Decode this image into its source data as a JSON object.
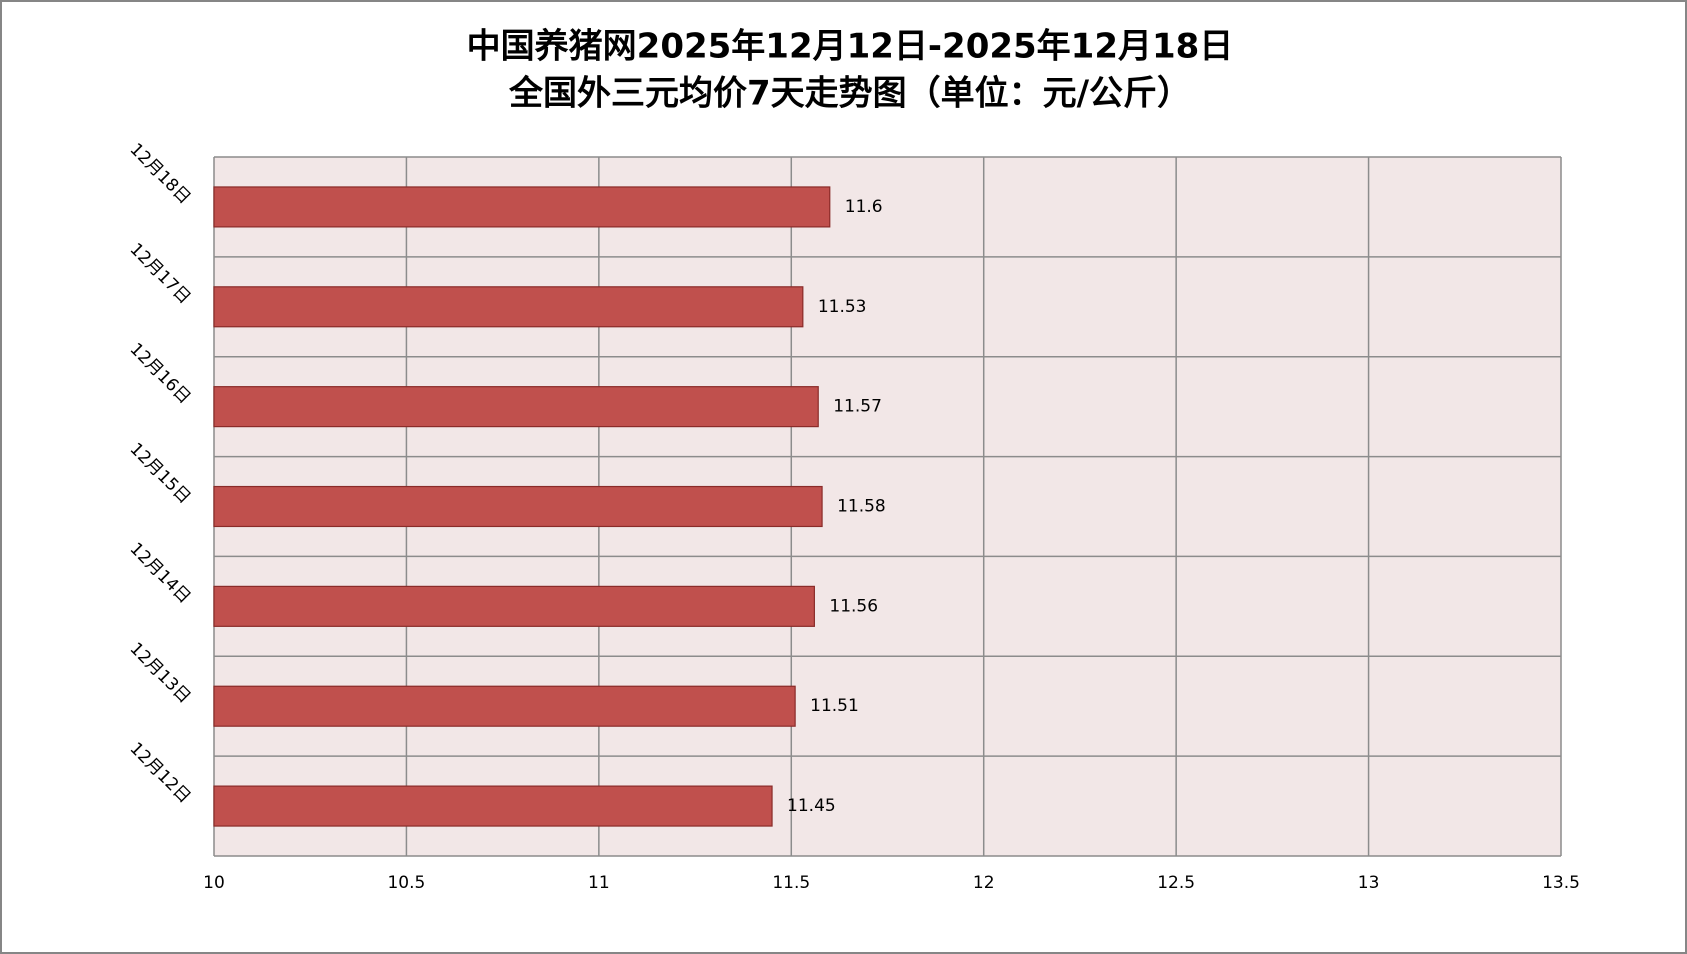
{
  "chart_data": {
    "type": "bar",
    "orientation": "horizontal",
    "title": "中国养猪网2025年12月12日-2025年12月18日",
    "subtitle": "全国外三元均价7天走势图（单位：元/公斤）",
    "categories": [
      "12月12日",
      "12月13日",
      "12月14日",
      "12月15日",
      "12月16日",
      "12月17日",
      "12月18日"
    ],
    "values": [
      11.45,
      11.51,
      11.56,
      11.58,
      11.57,
      11.53,
      11.6
    ],
    "color": "#c0504d",
    "xlim": [
      10,
      13.5
    ],
    "xticks": [
      10,
      10.5,
      11,
      11.5,
      12,
      12.5,
      13,
      13.5
    ],
    "grid": true
  }
}
